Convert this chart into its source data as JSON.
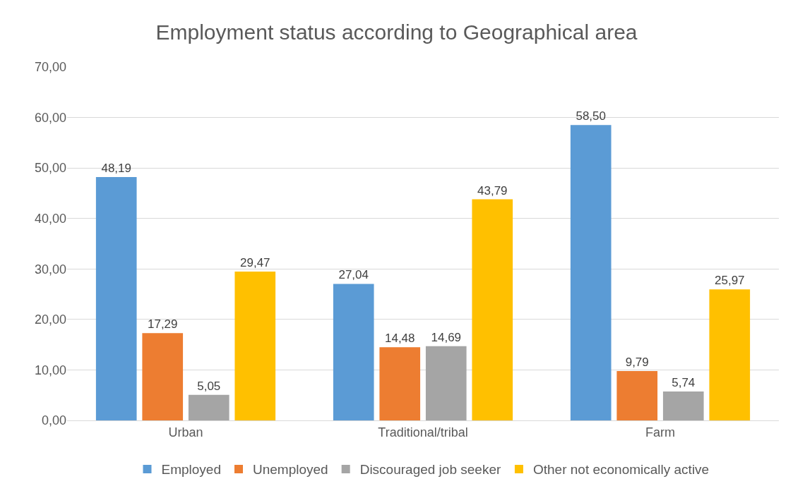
{
  "chart_data": {
    "type": "bar",
    "title": "Employment status according to Geographical area",
    "categories": [
      "Urban",
      "Traditional/tribal",
      "Farm"
    ],
    "series": [
      {
        "name": "Employed",
        "color": "#5b9bd5",
        "values": [
          48.19,
          27.04,
          58.5
        ],
        "value_labels": [
          "48,19",
          "27,04",
          "58,50"
        ]
      },
      {
        "name": "Unemployed",
        "color": "#ed7d31",
        "values": [
          17.29,
          14.48,
          9.79
        ],
        "value_labels": [
          "17,29",
          "14,48",
          "9,79"
        ]
      },
      {
        "name": "Discouraged job seeker",
        "color": "#a5a5a5",
        "values": [
          5.05,
          14.69,
          5.74
        ],
        "value_labels": [
          "5,05",
          "14,69",
          "5,74"
        ]
      },
      {
        "name": "Other not economically active",
        "color": "#ffc000",
        "values": [
          29.47,
          43.79,
          25.97
        ],
        "value_labels": [
          "29,47",
          "43,79",
          "25,97"
        ]
      }
    ],
    "ylim": [
      0,
      70
    ],
    "yticks": [
      {
        "value": 0,
        "label": "0,00"
      },
      {
        "value": 10,
        "label": "10,00"
      },
      {
        "value": 20,
        "label": "20,00"
      },
      {
        "value": 30,
        "label": "30,00"
      },
      {
        "value": 40,
        "label": "40,00"
      },
      {
        "value": 50,
        "label": "50,00"
      },
      {
        "value": 60,
        "label": "60,00"
      },
      {
        "value": 70,
        "label": "70,00"
      }
    ],
    "grid": "y",
    "legend": "bottom"
  }
}
